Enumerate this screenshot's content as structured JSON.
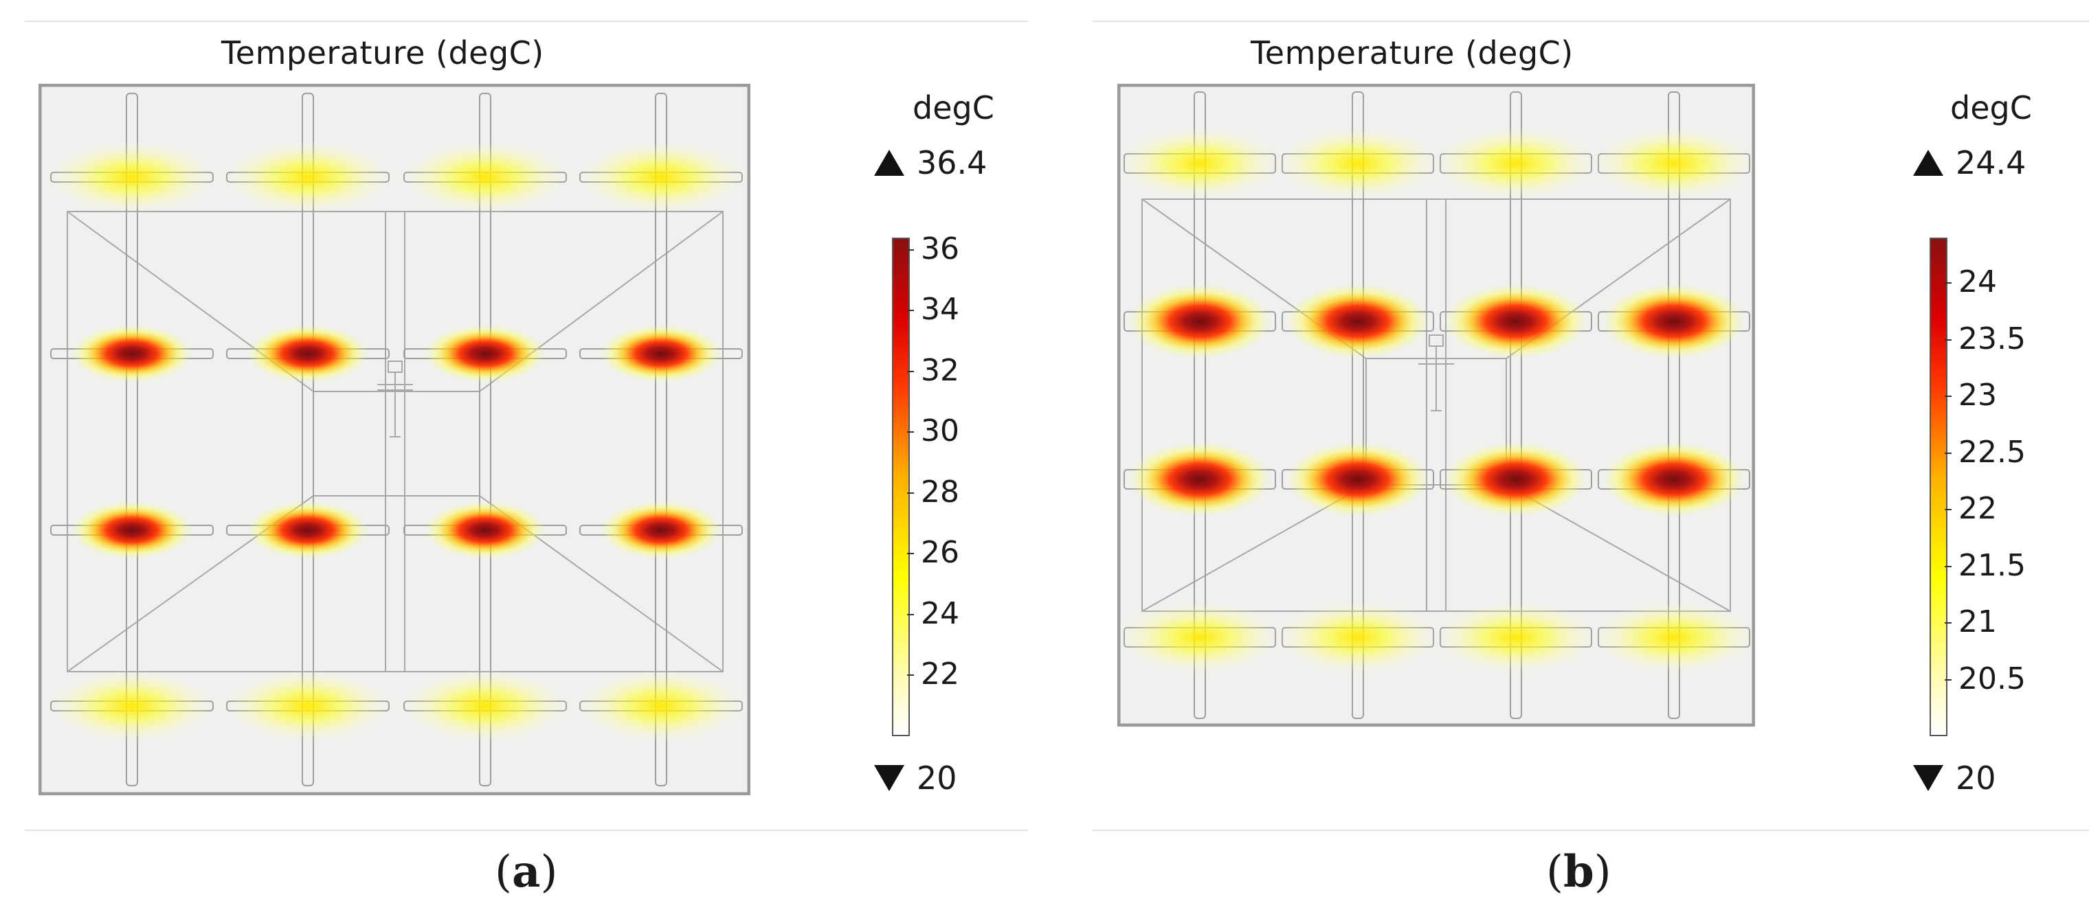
{
  "panels": [
    {
      "id": "a",
      "title": "Temperature (degC)",
      "unit": "degC",
      "max_label": "36.4",
      "min_label": "20",
      "colorbar_ticks": [
        "36",
        "34",
        "32",
        "30",
        "28",
        "26",
        "24",
        "22"
      ],
      "colorbar_tick_values": [
        36,
        34,
        32,
        30,
        28,
        26,
        24,
        22
      ],
      "range": [
        20,
        36.4
      ],
      "caption_letter": "a",
      "hotspot_levels": [
        0.35,
        0.9,
        0.9,
        0.35
      ]
    },
    {
      "id": "b",
      "title": "Temperature (degC)",
      "unit": "degC",
      "max_label": "24.4",
      "min_label": "20",
      "colorbar_ticks": [
        "24",
        "23.5",
        "23",
        "22.5",
        "22",
        "21.5",
        "21",
        "20.5"
      ],
      "colorbar_tick_values": [
        24,
        23.5,
        23,
        22.5,
        22,
        21.5,
        21,
        20.5
      ],
      "range": [
        20,
        24.4
      ],
      "caption_letter": "b",
      "hotspot_levels": [
        0.35,
        1.0,
        1.0,
        0.35
      ]
    }
  ],
  "colors": {
    "background": "#f0f0ee",
    "outline": "#9a9a9a",
    "hot": "#8a1010",
    "warm": "#ff3a00",
    "mild": "#ffff00"
  }
}
